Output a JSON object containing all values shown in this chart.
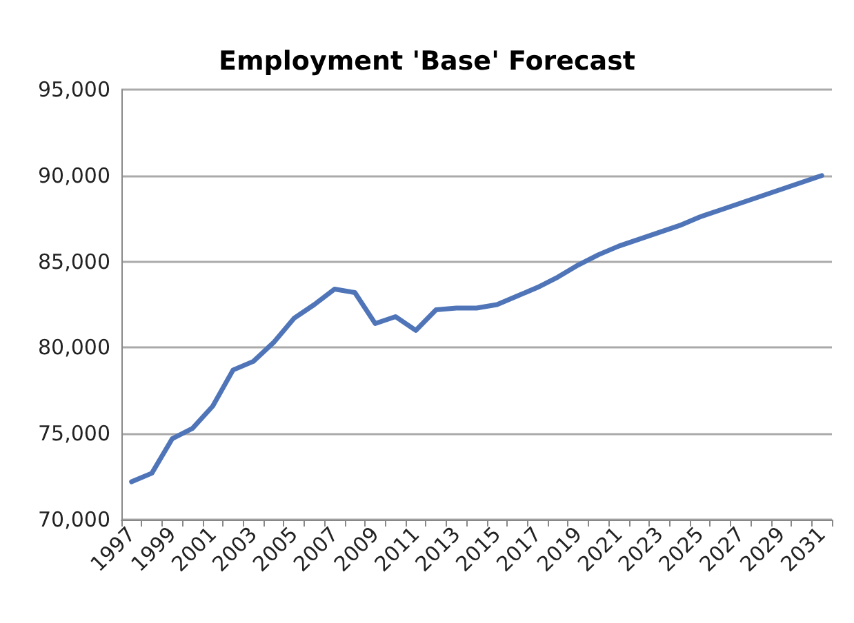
{
  "chart_data": {
    "type": "line",
    "title": "Employment 'Base' Forecast",
    "categories": [
      "1997",
      null,
      "1999",
      null,
      "2001",
      null,
      "2003",
      null,
      "2005",
      null,
      "2007",
      null,
      "2009",
      null,
      "2011",
      null,
      "2013",
      null,
      "2015",
      null,
      "2017",
      null,
      "2019",
      null,
      "2021",
      null,
      "2023",
      null,
      "2025",
      null,
      "2027",
      null,
      "2029",
      null,
      "2031"
    ],
    "series": [
      {
        "color": "#4f75b8",
        "values": [
          72200,
          72700,
          74700,
          75300,
          76600,
          78700,
          79200,
          80300,
          81700,
          82500,
          83400,
          83200,
          81400,
          81800,
          81000,
          82200,
          82300,
          82300,
          82500,
          83000,
          83500,
          84100,
          84800,
          85400,
          85900,
          86300,
          86700,
          87100,
          87600,
          88000,
          88400,
          88800,
          89200,
          89600,
          90000
        ]
      }
    ],
    "ylim": [
      70000,
      95000
    ],
    "yticks": [
      {
        "value": 70000,
        "label": "70,000"
      },
      {
        "value": 75000,
        "label": "75,000"
      },
      {
        "value": 80000,
        "label": "80,000"
      },
      {
        "value": 85000,
        "label": "85,000"
      },
      {
        "value": 90000,
        "label": "90,000"
      },
      {
        "value": 95000,
        "label": "95,000"
      }
    ],
    "grid": "y",
    "marker": "none",
    "line_style": "solid"
  }
}
